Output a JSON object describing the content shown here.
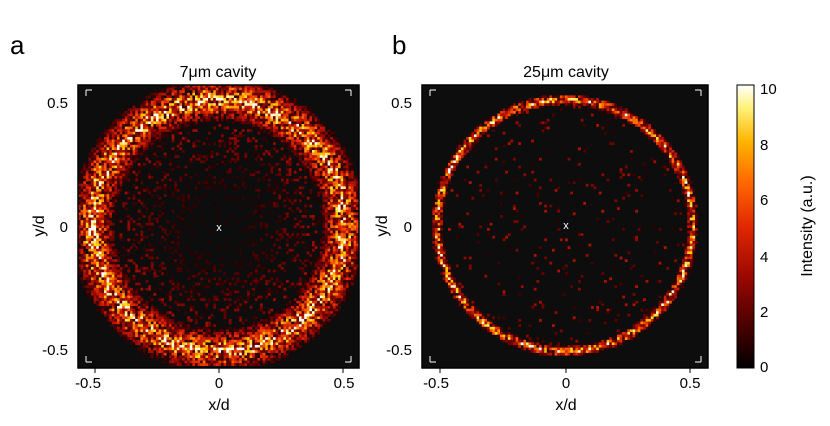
{
  "panels": [
    {
      "letter": "a",
      "title": "7μm cavity",
      "xlabel": "x/d",
      "ylabel": "y/d",
      "x_ticks": [
        "-0.5",
        "0",
        "0.5"
      ],
      "y_ticks": [
        "0.5",
        "0",
        "-0.5"
      ],
      "center_marker": "x"
    },
    {
      "letter": "b",
      "title": "25μm cavity",
      "xlabel": "x/d",
      "ylabel": "y/d",
      "x_ticks": [
        "-0.5",
        "0",
        "0.5"
      ],
      "y_ticks": [
        "0.5",
        "0",
        "-0.5"
      ],
      "center_marker": "x"
    }
  ],
  "colorbar": {
    "label": "Intensity (a.u.)",
    "ticks": [
      "10",
      "8",
      "6",
      "4",
      "2",
      "0"
    ]
  },
  "chart_data": [
    {
      "type": "heatmap",
      "title": "7μm cavity",
      "xlabel": "x/d",
      "ylabel": "y/d",
      "xlim": [
        -0.57,
        0.57
      ],
      "ylim": [
        -0.57,
        0.57
      ],
      "x_ticks": [
        -0.5,
        0,
        0.5
      ],
      "y_ticks": [
        -0.5,
        0,
        0.5
      ],
      "ring_radius": 0.51,
      "ring_width": 0.1,
      "color_range": [
        0,
        10
      ],
      "center_mark": [
        0,
        0
      ],
      "description_of_values": "broad bright ring of intensity near radius 0.5, dim speckle inside"
    },
    {
      "type": "heatmap",
      "title": "25μm cavity",
      "xlabel": "x/d",
      "ylabel": "y/d",
      "xlim": [
        -0.57,
        0.57
      ],
      "ylim": [
        -0.57,
        0.57
      ],
      "x_ticks": [
        -0.5,
        0,
        0.5
      ],
      "y_ticks": [
        -0.5,
        0,
        0.5
      ],
      "ring_radius": 0.51,
      "ring_width": 0.025,
      "color_range": [
        0,
        10
      ],
      "center_mark": [
        0,
        0
      ],
      "description_of_values": "thin sharp ring of intensity near radius 0.5, sparse speckle inside"
    }
  ],
  "colors": {
    "background": "#0d0d0d",
    "colormap": [
      "#000000",
      "#5a0000",
      "#b01000",
      "#e83000",
      "#ff7a00",
      "#ffd400",
      "#ffffd0",
      "#ffffff"
    ]
  }
}
